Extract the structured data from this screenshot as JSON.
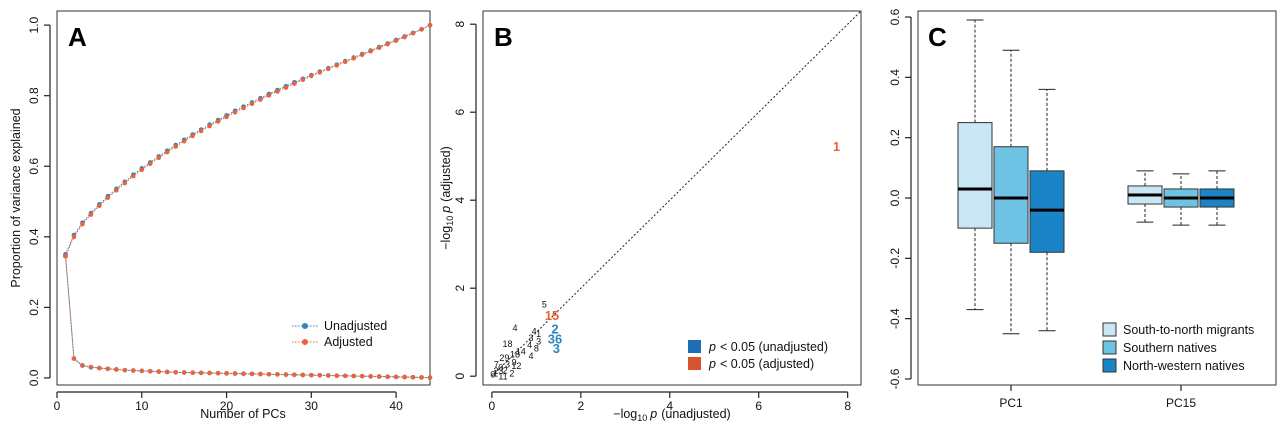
{
  "colors": {
    "unadjusted": "#2e86c1",
    "adjusted": "#e8643c",
    "migrants": "#c9e6f5",
    "southern": "#6ec3e4",
    "northwestern": "#1b84c6",
    "sig_unadj_box": "#1f6fb5",
    "sig_adj_box": "#d9532f"
  },
  "chart_data": [
    {
      "type": "line",
      "panel": "A",
      "xlabel": "Number of PCs",
      "ylabel": "Proportion of variance explained",
      "xlim": [
        0,
        44
      ],
      "ylim": [
        -0.02,
        1.04
      ],
      "xticks": [
        "0",
        "10",
        "20",
        "30",
        "40"
      ],
      "yticks": [
        "0.0",
        "0.2",
        "0.4",
        "0.6",
        "0.8",
        "1.0"
      ],
      "legend": {
        "position": "bottom-right",
        "entries": [
          "Unadjusted",
          "Adjusted"
        ]
      },
      "series": [
        {
          "name": "Unadjusted",
          "cumulative": [
            0.35,
            0.405,
            0.44,
            0.467,
            0.492,
            0.515,
            0.536,
            0.556,
            0.576,
            0.594,
            0.611,
            0.628,
            0.644,
            0.66,
            0.675,
            0.69,
            0.704,
            0.718,
            0.731,
            0.744,
            0.757,
            0.769,
            0.781,
            0.793,
            0.805,
            0.816,
            0.827,
            0.838,
            0.848,
            0.858,
            0.868,
            0.878,
            0.888,
            0.898,
            0.908,
            0.918,
            0.928,
            0.938,
            0.948,
            0.958,
            0.968,
            0.978,
            0.988,
            1.0
          ],
          "individual": [
            0.35,
            0.055,
            0.035,
            0.03,
            0.028,
            0.026,
            0.024,
            0.022,
            0.021,
            0.02,
            0.019,
            0.018,
            0.017,
            0.016,
            0.0155,
            0.015,
            0.0145,
            0.014,
            0.0135,
            0.013,
            0.0125,
            0.012,
            0.0115,
            0.011,
            0.0105,
            0.01,
            0.0095,
            0.009,
            0.0085,
            0.008,
            0.0075,
            0.007,
            0.0065,
            0.006,
            0.0055,
            0.005,
            0.0045,
            0.004,
            0.0035,
            0.003,
            0.0025,
            0.002,
            0.0015,
            0.001
          ]
        },
        {
          "name": "Adjusted",
          "cumulative": [
            0.345,
            0.4,
            0.436,
            0.463,
            0.488,
            0.511,
            0.532,
            0.552,
            0.572,
            0.59,
            0.607,
            0.624,
            0.64,
            0.656,
            0.671,
            0.686,
            0.7,
            0.714,
            0.727,
            0.74,
            0.753,
            0.765,
            0.777,
            0.789,
            0.801,
            0.812,
            0.823,
            0.834,
            0.845,
            0.856,
            0.866,
            0.876,
            0.886,
            0.896,
            0.906,
            0.916,
            0.926,
            0.936,
            0.946,
            0.956,
            0.966,
            0.977,
            0.988,
            1.0
          ],
          "individual": [
            0.345,
            0.055,
            0.036,
            0.031,
            0.028,
            0.026,
            0.024,
            0.022,
            0.021,
            0.02,
            0.019,
            0.018,
            0.017,
            0.016,
            0.0155,
            0.015,
            0.0145,
            0.014,
            0.0135,
            0.013,
            0.0125,
            0.012,
            0.0115,
            0.011,
            0.0105,
            0.01,
            0.0095,
            0.009,
            0.0085,
            0.008,
            0.0075,
            0.007,
            0.0065,
            0.006,
            0.0055,
            0.005,
            0.0045,
            0.004,
            0.0035,
            0.003,
            0.0025,
            0.002,
            0.0015,
            0.001
          ]
        }
      ]
    },
    {
      "type": "scatter",
      "panel": "B",
      "xlabel_pre": "−log",
      "xlabel_sub": "10",
      "xlabel_p": "p",
      "xlabel_post": "(unadjusted)",
      "ylabel_pre": "−log",
      "ylabel_sub": "10",
      "ylabel_p": "p",
      "ylabel_post": "(adjusted)",
      "xlim": [
        -0.2,
        8.3
      ],
      "ylim": [
        -0.2,
        8.3
      ],
      "xticks": [
        "0",
        "2",
        "4",
        "6",
        "8"
      ],
      "yticks": [
        "0",
        "2",
        "4",
        "6",
        "8"
      ],
      "diagonal": true,
      "legend": {
        "position": "bottom-right",
        "entries": [
          {
            "p": "p",
            "text": "< 0.05 (unadjusted)",
            "color_key": "sig_unadj_box"
          },
          {
            "p": "p",
            "text": "< 0.05 (adjusted)",
            "color_key": "sig_adj_box"
          }
        ]
      },
      "points": [
        {
          "label": "1",
          "x": 7.75,
          "y": 5.2,
          "color": "adjusted",
          "size": 13
        },
        {
          "label": "15",
          "x": 1.35,
          "y": 1.35,
          "color": "adjusted",
          "size": 13
        },
        {
          "label": "2",
          "x": 1.42,
          "y": 1.05,
          "color": "unadjusted",
          "size": 13
        },
        {
          "label": "36",
          "x": 1.42,
          "y": 0.82,
          "color": "unadjusted",
          "size": 13
        },
        {
          "label": "3",
          "x": 1.45,
          "y": 0.6,
          "color": "unadjusted",
          "size": 13
        },
        {
          "label": "5",
          "x": 1.18,
          "y": 1.62,
          "color": "black",
          "size": 9
        },
        {
          "label": "4",
          "x": 0.52,
          "y": 1.08,
          "color": "black",
          "size": 9
        },
        {
          "label": "4",
          "x": 0.95,
          "y": 1.0,
          "color": "black",
          "size": 9
        },
        {
          "label": "1",
          "x": 1.05,
          "y": 0.95,
          "color": "black",
          "size": 9
        },
        {
          "label": "3",
          "x": 0.88,
          "y": 0.85,
          "color": "black",
          "size": 9
        },
        {
          "label": "3",
          "x": 1.05,
          "y": 0.78,
          "color": "black",
          "size": 9
        },
        {
          "label": "4",
          "x": 0.85,
          "y": 0.7,
          "color": "black",
          "size": 9
        },
        {
          "label": "8",
          "x": 1.0,
          "y": 0.62,
          "color": "black",
          "size": 9
        },
        {
          "label": "18",
          "x": 0.35,
          "y": 0.72,
          "color": "black",
          "size": 9
        },
        {
          "label": "14",
          "x": 0.65,
          "y": 0.55,
          "color": "black",
          "size": 9
        },
        {
          "label": "4",
          "x": 0.88,
          "y": 0.45,
          "color": "black",
          "size": 9
        },
        {
          "label": "18",
          "x": 0.52,
          "y": 0.48,
          "color": "black",
          "size": 9
        },
        {
          "label": "9",
          "x": 0.5,
          "y": 0.3,
          "color": "black",
          "size": 9
        },
        {
          "label": "29",
          "x": 0.28,
          "y": 0.4,
          "color": "black",
          "size": 9
        },
        {
          "label": "12",
          "x": 0.55,
          "y": 0.22,
          "color": "black",
          "size": 9
        },
        {
          "label": "3",
          "x": 0.35,
          "y": 0.25,
          "color": "black",
          "size": 9
        },
        {
          "label": "2",
          "x": 0.45,
          "y": 0.05,
          "color": "black",
          "size": 9
        },
        {
          "label": "0",
          "x": 0.2,
          "y": 0.18,
          "color": "black",
          "size": 9
        },
        {
          "label": "23",
          "x": 0.15,
          "y": 0.1,
          "color": "black",
          "size": 9
        },
        {
          "label": "1",
          "x": 0.08,
          "y": 0.05,
          "color": "black",
          "size": 9
        },
        {
          "label": "7",
          "x": 0.1,
          "y": 0.25,
          "color": "black",
          "size": 9
        },
        {
          "label": "6",
          "x": 0.02,
          "y": 0.02,
          "color": "black",
          "size": 9
        },
        {
          "label": "11",
          "x": 0.25,
          "y": -0.02,
          "color": "black",
          "size": 9
        },
        {
          "label": "2",
          "x": 0.3,
          "y": 0.12,
          "color": "black",
          "size": 9
        }
      ]
    },
    {
      "type": "box",
      "panel": "C",
      "categories": [
        "PC1",
        "PC15"
      ],
      "ylim": [
        -0.62,
        0.62
      ],
      "yticks": [
        "-0.6",
        "-0.4",
        "-0.2",
        "0.0",
        "0.2",
        "0.4",
        "0.6"
      ],
      "legend": {
        "position": "bottom-right",
        "entries": [
          "South-to-north migrants",
          "Southern natives",
          "North-western natives"
        ]
      },
      "series": [
        {
          "name": "South-to-north migrants",
          "color_key": "migrants",
          "boxes": [
            {
              "min": -0.37,
              "q1": -0.1,
              "median": 0.03,
              "q3": 0.25,
              "max": 0.59
            },
            {
              "min": -0.08,
              "q1": -0.02,
              "median": 0.01,
              "q3": 0.04,
              "max": 0.09
            }
          ]
        },
        {
          "name": "Southern natives",
          "color_key": "southern",
          "boxes": [
            {
              "min": -0.45,
              "q1": -0.15,
              "median": 0.0,
              "q3": 0.17,
              "max": 0.49
            },
            {
              "min": -0.09,
              "q1": -0.03,
              "median": 0.0,
              "q3": 0.03,
              "max": 0.08
            }
          ]
        },
        {
          "name": "North-western natives",
          "color_key": "northwestern",
          "boxes": [
            {
              "min": -0.44,
              "q1": -0.18,
              "median": -0.04,
              "q3": 0.09,
              "max": 0.36
            },
            {
              "min": -0.09,
              "q1": -0.03,
              "median": 0.0,
              "q3": 0.03,
              "max": 0.09
            }
          ]
        }
      ]
    }
  ]
}
